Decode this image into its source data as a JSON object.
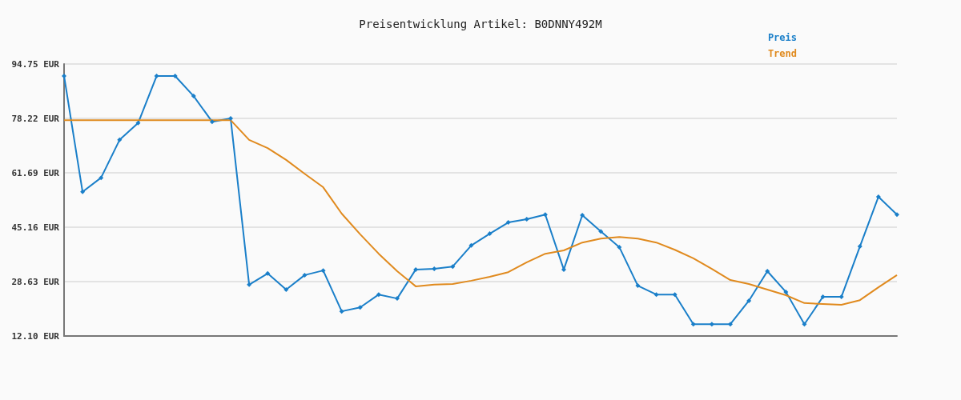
{
  "chart_data": {
    "type": "line",
    "title": "Preisentwicklung Artikel: B0DNNY492M",
    "categories": [
      null,
      null,
      null,
      null,
      null,
      null,
      null,
      null,
      null,
      null,
      null,
      null,
      null,
      null,
      null,
      null,
      null,
      null,
      null,
      null,
      null,
      null,
      null,
      null,
      null,
      null,
      null,
      null,
      null,
      null,
      null,
      null,
      null,
      null,
      null,
      null,
      null,
      null,
      null,
      null,
      null,
      null,
      null,
      null,
      null,
      null
    ],
    "series": [
      {
        "name": "Preis",
        "color": "#1a7fc9",
        "marker": "diamond",
        "values": [
          91.1,
          55.9,
          60.2,
          71.7,
          76.8,
          91.1,
          91.1,
          85.0,
          77.2,
          78.2,
          27.7,
          31.1,
          26.2,
          30.6,
          32.0,
          19.6,
          20.8,
          24.7,
          23.5,
          32.3,
          32.5,
          33.2,
          39.6,
          43.2,
          46.6,
          47.6,
          49.0,
          32.3,
          48.8,
          43.9,
          39.1,
          27.4,
          24.7,
          24.7,
          15.7,
          15.7,
          15.7,
          22.8,
          31.8,
          25.5,
          15.7,
          24.0,
          24.0,
          39.3,
          54.4,
          49.0
        ]
      },
      {
        "name": "Trend",
        "color": "#e08a1e",
        "marker": "none",
        "values": [
          77.7,
          77.7,
          77.7,
          77.7,
          77.7,
          77.7,
          77.7,
          77.7,
          77.7,
          77.7,
          71.7,
          69.2,
          65.6,
          61.4,
          57.3,
          49.3,
          43.0,
          37.1,
          31.8,
          27.2,
          27.7,
          27.9,
          28.9,
          30.1,
          31.5,
          34.5,
          37.1,
          38.1,
          40.5,
          41.7,
          42.2,
          41.7,
          40.5,
          38.3,
          35.7,
          32.5,
          29.1,
          27.9,
          26.2,
          24.5,
          22.1,
          21.8,
          21.6,
          23.0,
          26.9,
          30.6
        ]
      }
    ],
    "ylim": [
      12.1,
      94.75
    ],
    "yticks": [
      {
        "value": 12.1,
        "label": "12.10 EUR"
      },
      {
        "value": 28.63,
        "label": "28.63 EUR"
      },
      {
        "value": 45.16,
        "label": "45.16 EUR"
      },
      {
        "value": 61.69,
        "label": "61.69 EUR"
      },
      {
        "value": 78.22,
        "label": "78.22 EUR"
      },
      {
        "value": 94.75,
        "label": "94.75 EUR"
      }
    ],
    "grid": "y",
    "legend": "top right",
    "tick_labels": "y",
    "line_style": "solid"
  }
}
